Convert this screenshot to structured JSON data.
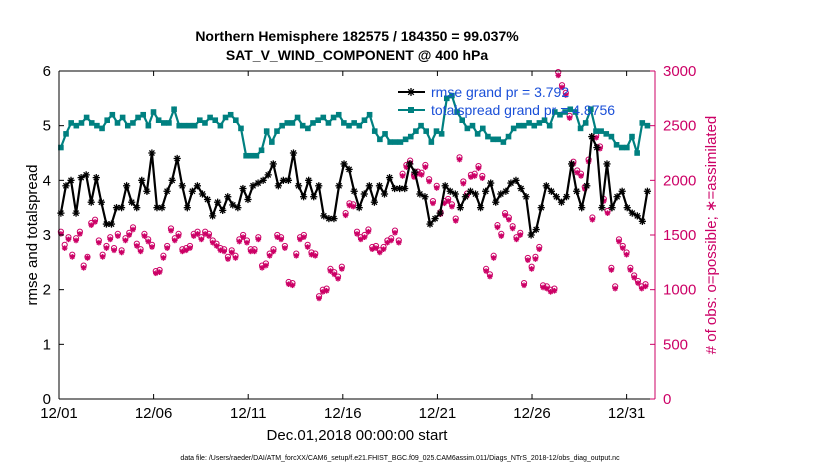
{
  "chart_data": {
    "type": "line",
    "title": "Northern Hemisphere 182575 / 184350 = 99.037%",
    "subtitle": "SAT_V_WIND_COMPONENT @ 400 hPa",
    "xlabel": "Dec.01,2018 00:00:00 start",
    "ylabel_left": "rmse and totalspread",
    "ylabel_right": "# of obs: o=possible; ∗=assimilated",
    "footer": "data file: /Users/raeder/DAI/ATM_forcXX/CAM6_setup/f.e21.FHIST_BGC.f09_025.CAM6assim.011/Diags_NTrS_2018-12/obs_diag_output.nc",
    "xlim": [
      0,
      31.5
    ],
    "ylim_left": [
      0,
      6
    ],
    "ylim_right": [
      0,
      3000
    ],
    "x_ticks": [
      0,
      5,
      10,
      15,
      20,
      25,
      30
    ],
    "x_tick_labels": [
      "12/01",
      "12/06",
      "12/11",
      "12/16",
      "12/21",
      "12/26",
      "12/31"
    ],
    "y_ticks_left": [
      0,
      1,
      2,
      3,
      4,
      5,
      6
    ],
    "y_ticks_right": [
      0,
      500,
      1000,
      1500,
      2000,
      2500,
      3000
    ],
    "colors": {
      "rmse": "#000000",
      "spread": "#008080",
      "obs": "#cc0066",
      "axis_right": "#cc0066",
      "legend_text": "#1a4fd8"
    },
    "series": [
      {
        "name": "rmse grand pr = 3.792",
        "values": [
          3.4,
          3.9,
          4.0,
          3.4,
          4.05,
          4.1,
          3.6,
          4.05,
          3.6,
          3.2,
          3.2,
          3.5,
          3.5,
          3.9,
          3.6,
          3.5,
          4.0,
          3.8,
          4.5,
          3.5,
          3.5,
          3.8,
          4.0,
          4.4,
          3.9,
          3.5,
          3.8,
          3.9,
          3.75,
          3.65,
          3.35,
          3.6,
          3.45,
          3.7,
          3.55,
          3.5,
          3.85,
          3.65,
          3.9,
          3.95,
          4.0,
          4.1,
          4.3,
          3.9,
          4.0,
          4.0,
          4.5,
          3.9,
          3.7,
          4.0,
          3.7,
          3.9,
          3.35,
          3.3,
          3.3,
          3.9,
          4.3,
          4.2,
          3.8,
          3.5,
          3.75,
          3.9,
          3.6,
          3.9,
          3.75,
          4.05,
          3.85,
          3.85,
          3.85,
          4.3,
          4.15,
          3.75,
          3.7,
          3.2,
          3.3,
          3.4,
          3.9,
          3.8,
          3.75,
          3.5,
          3.7,
          3.8,
          3.75,
          3.5,
          3.8,
          3.95,
          3.6,
          3.75,
          3.8,
          3.95,
          4.0,
          3.85,
          3.7,
          3.0,
          3.1,
          3.5,
          3.9,
          3.8,
          3.7,
          3.6,
          3.7,
          4.3,
          3.8,
          3.5,
          3.9,
          4.8,
          4.6,
          3.5,
          4.3,
          3.5,
          3.7,
          3.8,
          3.5,
          3.4,
          3.35,
          3.25,
          3.8
        ]
      },
      {
        "name": "totalspread grand pr = 4.8756",
        "values": [
          4.6,
          4.85,
          5.05,
          5.0,
          5.05,
          5.15,
          5.05,
          5.0,
          4.95,
          5.1,
          5.2,
          5.05,
          5.15,
          5.0,
          5.05,
          5.15,
          5.2,
          5.0,
          5.25,
          5.1,
          5.05,
          5.05,
          5.3,
          5.0,
          5.0,
          5.0,
          5.0,
          5.1,
          5.05,
          5.15,
          5.1,
          5.0,
          5.15,
          5.2,
          5.1,
          4.95,
          4.45,
          4.45,
          4.45,
          4.55,
          4.9,
          4.7,
          4.9,
          5.0,
          5.05,
          5.05,
          5.15,
          5.0,
          4.95,
          5.05,
          5.1,
          5.15,
          5.05,
          5.15,
          5.2,
          5.05,
          5.0,
          5.05,
          5.0,
          5.1,
          5.2,
          4.9,
          4.75,
          4.85,
          4.7,
          4.7,
          4.7,
          4.75,
          4.8,
          4.9,
          5.0,
          4.9,
          4.7,
          4.9,
          4.85,
          5.5,
          5.55,
          5.25,
          5.1,
          4.95,
          5.0,
          4.85,
          4.95,
          4.8,
          4.75,
          4.75,
          4.7,
          4.8,
          4.95,
          5.0,
          5.0,
          5.05,
          5.0,
          5.05,
          5.1,
          5.0,
          5.25,
          5.2,
          5.25,
          5.3,
          5.25,
          4.95,
          5.05,
          5.3,
          4.9,
          4.9,
          4.85,
          4.8,
          4.65,
          4.6,
          4.6,
          4.8,
          4.5,
          5.05,
          5.0
        ]
      },
      {
        "name": "possible",
        "values": [
          1530,
          1410,
          1480,
          1320,
          1470,
          1530,
          1220,
          1300,
          1610,
          1640,
          1450,
          1320,
          1400,
          1480,
          1380,
          1510,
          1360,
          1470,
          1520,
          1570,
          1420,
          1370,
          1510,
          1460,
          1410,
          1170,
          1180,
          1310,
          1400,
          1560,
          1470,
          1510,
          1370,
          1380,
          1400,
          1510,
          1530,
          1480,
          1530,
          1510,
          1450,
          1420,
          1380,
          1370,
          1300,
          1360,
          1310,
          1460,
          1500,
          1450,
          1370,
          1370,
          1480,
          1220,
          1240,
          1330,
          1370,
          1500,
          1480,
          1400,
          1070,
          1060,
          1330,
          1480,
          1500,
          1410,
          1340,
          1330,
          940,
          1000,
          1010,
          1190,
          1160,
          1120,
          1210,
          1700,
          1790,
          1780,
          1530,
          1480,
          1500,
          1550,
          1390,
          1400,
          1360,
          1390,
          1450,
          1470,
          1540,
          1450,
          2060,
          2140,
          2180,
          2050,
          2080,
          2070,
          2140,
          2010,
          1810,
          1950,
          1710,
          1810,
          1830,
          1780,
          1650,
          2210,
          1990,
          1880,
          2050,
          2060,
          2130,
          2040,
          1190,
          1140,
          1310,
          1590,
          1510,
          1700,
          1660,
          1580,
          1480,
          1520,
          1060,
          1290,
          1210,
          1300,
          1390,
          1040,
          1030,
          1000,
          1010,
          2990,
          2870,
          2800,
          2590,
          2170,
          2090,
          2060,
          1940,
          2190,
          1660,
          2410,
          2310,
          1830,
          1720,
          1200,
          1030,
          1460,
          1400,
          1340,
          1200,
          1130,
          1080,
          1030,
          1050
        ]
      },
      {
        "name": "assimilated",
        "values": [
          1510,
          1380,
          1460,
          1300,
          1450,
          1510,
          1200,
          1290,
          1590,
          1620,
          1430,
          1300,
          1380,
          1460,
          1360,
          1490,
          1340,
          1450,
          1500,
          1550,
          1400,
          1350,
          1490,
          1440,
          1390,
          1150,
          1160,
          1290,
          1380,
          1540,
          1450,
          1490,
          1350,
          1360,
          1380,
          1490,
          1510,
          1460,
          1510,
          1490,
          1430,
          1400,
          1360,
          1350,
          1280,
          1340,
          1290,
          1440,
          1480,
          1430,
          1350,
          1350,
          1460,
          1200,
          1220,
          1310,
          1350,
          1480,
          1460,
          1380,
          1050,
          1040,
          1310,
          1460,
          1480,
          1390,
          1320,
          1310,
          920,
          980,
          990,
          1170,
          1140,
          1100,
          1190,
          1680,
          1770,
          1760,
          1510,
          1460,
          1480,
          1530,
          1370,
          1380,
          1340,
          1370,
          1430,
          1450,
          1520,
          1430,
          2040,
          2120,
          2160,
          2030,
          2060,
          2050,
          2120,
          1990,
          1790,
          1930,
          1690,
          1790,
          1810,
          1760,
          1630,
          2190,
          1970,
          1860,
          2030,
          2040,
          2110,
          2020,
          1170,
          1120,
          1290,
          1570,
          1490,
          1680,
          1640,
          1560,
          1460,
          1500,
          1040,
          1270,
          1190,
          1280,
          1370,
          1020,
          1010,
          980,
          990,
          2960,
          2850,
          2780,
          2570,
          2150,
          2070,
          2040,
          1920,
          2170,
          1640,
          2390,
          2290,
          1810,
          1700,
          1180,
          1010,
          1440,
          1380,
          1320,
          1180,
          1110,
          1060,
          1010,
          1030
        ]
      }
    ]
  }
}
